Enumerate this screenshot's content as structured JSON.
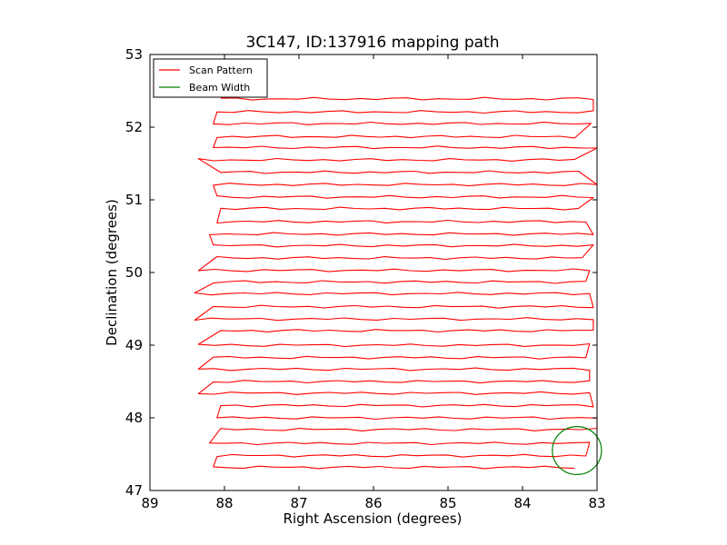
{
  "chart_data": {
    "type": "line",
    "title": "3C147, ID:137916 mapping path",
    "xlabel": "Right Ascension (degrees)",
    "ylabel": "Declination (degrees)",
    "xlim": [
      89.0,
      83.0
    ],
    "ylim": [
      47.0,
      53.0
    ],
    "xticks": [
      "89",
      "88",
      "87",
      "86",
      "85",
      "84",
      "83"
    ],
    "yticks": [
      "47",
      "48",
      "49",
      "50",
      "51",
      "52",
      "53"
    ],
    "grid": false,
    "legend": {
      "placement": "top-left",
      "entries": [
        {
          "label": "Scan Pattern",
          "color": "#ff0000"
        },
        {
          "label": "Beam Width",
          "color": "#008000"
        }
      ]
    },
    "series": [
      {
        "name": "Scan Pattern",
        "color": "#ff0000",
        "rows": [
          {
            "dec": 52.39,
            "ra_min": 83.05,
            "ra_max": 88.05
          },
          {
            "dec": 52.21,
            "ra_min": 83.05,
            "ra_max": 88.1
          },
          {
            "dec": 52.05,
            "ra_min": 83.08,
            "ra_max": 88.15
          },
          {
            "dec": 51.87,
            "ra_min": 83.3,
            "ra_max": 88.1
          },
          {
            "dec": 51.72,
            "ra_min": 83.0,
            "ra_max": 88.15
          },
          {
            "dec": 51.55,
            "ra_min": 83.3,
            "ra_max": 88.35
          },
          {
            "dec": 51.38,
            "ra_min": 83.25,
            "ra_max": 88.05
          },
          {
            "dec": 51.21,
            "ra_min": 83.0,
            "ra_max": 88.15
          },
          {
            "dec": 51.04,
            "ra_min": 83.05,
            "ra_max": 88.1
          },
          {
            "dec": 50.88,
            "ra_min": 83.25,
            "ra_max": 88.05
          },
          {
            "dec": 50.7,
            "ra_min": 83.15,
            "ra_max": 88.1
          },
          {
            "dec": 50.53,
            "ra_min": 83.05,
            "ra_max": 88.2
          },
          {
            "dec": 50.37,
            "ra_min": 83.05,
            "ra_max": 88.15
          },
          {
            "dec": 50.2,
            "ra_min": 83.2,
            "ra_max": 88.1
          },
          {
            "dec": 50.03,
            "ra_min": 83.1,
            "ra_max": 88.35
          },
          {
            "dec": 49.87,
            "ra_min": 83.15,
            "ra_max": 88.15
          },
          {
            "dec": 49.71,
            "ra_min": 83.1,
            "ra_max": 88.4
          },
          {
            "dec": 49.53,
            "ra_min": 83.05,
            "ra_max": 88.15
          },
          {
            "dec": 49.36,
            "ra_min": 83.05,
            "ra_max": 88.4
          },
          {
            "dec": 49.2,
            "ra_min": 83.05,
            "ra_max": 88.05
          },
          {
            "dec": 49.0,
            "ra_min": 83.1,
            "ra_max": 88.35
          },
          {
            "dec": 48.83,
            "ra_min": 83.15,
            "ra_max": 88.15
          },
          {
            "dec": 48.67,
            "ra_min": 83.1,
            "ra_max": 88.35
          },
          {
            "dec": 48.5,
            "ra_min": 83.1,
            "ra_max": 88.15
          },
          {
            "dec": 48.34,
            "ra_min": 83.1,
            "ra_max": 88.35
          },
          {
            "dec": 48.17,
            "ra_min": 83.05,
            "ra_max": 88.05
          },
          {
            "dec": 48.0,
            "ra_min": 83.0,
            "ra_max": 88.1
          },
          {
            "dec": 47.84,
            "ra_min": 83.0,
            "ra_max": 88.05
          },
          {
            "dec": 47.65,
            "ra_min": 83.1,
            "ra_max": 88.2
          },
          {
            "dec": 47.48,
            "ra_min": 83.15,
            "ra_max": 88.1
          },
          {
            "dec": 47.32,
            "ra_min": 83.3,
            "ra_max": 88.15
          }
        ]
      },
      {
        "name": "Beam Width",
        "color": "#008000",
        "shape": "circle",
        "center": [
          83.27,
          47.55
        ],
        "radius_deg": 0.33
      }
    ]
  }
}
